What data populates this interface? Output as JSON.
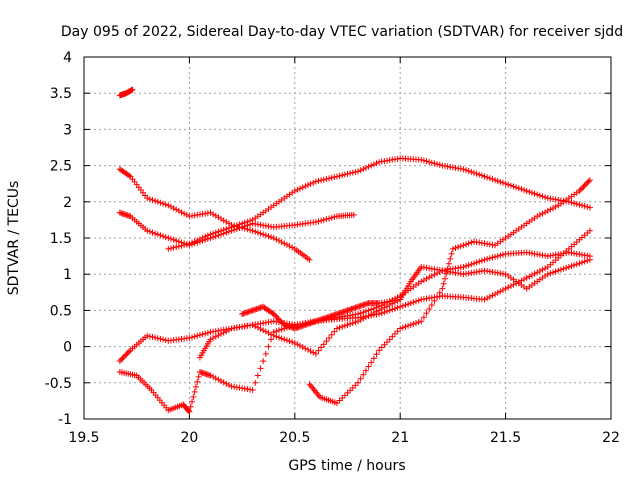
{
  "chart_data": {
    "type": "scatter",
    "title": "Day 095 of 2022, Sidereal Day-to-day VTEC variation (SDTVAR) for receiver sjdd",
    "xlabel": "GPS time / hours",
    "ylabel": "SDTVAR / TECUs",
    "xlim": [
      19.5,
      22
    ],
    "ylim": [
      -1,
      4
    ],
    "xticks": [
      19.5,
      20,
      20.5,
      21,
      21.5,
      22
    ],
    "xtick_labels": [
      "19.5",
      "20",
      "20.5",
      "21",
      "21.5",
      "22"
    ],
    "yticks": [
      -1,
      -0.5,
      0,
      0.5,
      1,
      1.5,
      2,
      2.5,
      3,
      3.5,
      4
    ],
    "ytick_labels": [
      "-1",
      "-0.5",
      "0",
      "0.5",
      "1",
      "1.5",
      "2",
      "2.5",
      "3",
      "3.5",
      "4"
    ],
    "grid": true,
    "marker": "+",
    "color": "#ff0000",
    "series": [
      {
        "name": "s1",
        "x": [
          19.67,
          19.7,
          19.73
        ],
        "y": [
          3.47,
          3.5,
          3.55
        ]
      },
      {
        "name": "s2",
        "x": [
          19.67,
          19.72,
          19.8,
          19.9,
          20.0,
          20.1,
          20.2,
          20.3,
          20.4,
          20.5,
          20.57
        ],
        "y": [
          2.45,
          2.35,
          2.05,
          1.95,
          1.8,
          1.85,
          1.68,
          1.6,
          1.5,
          1.35,
          1.2
        ]
      },
      {
        "name": "s3",
        "x": [
          19.67,
          19.72,
          19.8,
          19.9,
          20.0,
          20.1,
          20.2,
          20.3,
          20.4,
          20.5,
          20.6,
          20.7,
          20.78
        ],
        "y": [
          1.85,
          1.8,
          1.6,
          1.5,
          1.4,
          1.5,
          1.6,
          1.7,
          1.65,
          1.68,
          1.72,
          1.8,
          1.82
        ]
      },
      {
        "name": "s4",
        "x": [
          19.9,
          20.0,
          20.1,
          20.2,
          20.3,
          20.4,
          20.5,
          20.6,
          20.7,
          20.8,
          20.9,
          21.0,
          21.1,
          21.2,
          21.3,
          21.4,
          21.5,
          21.6,
          21.7,
          21.8,
          21.9
        ],
        "y": [
          1.35,
          1.42,
          1.55,
          1.65,
          1.75,
          1.95,
          2.15,
          2.28,
          2.35,
          2.42,
          2.55,
          2.6,
          2.58,
          2.5,
          2.45,
          2.35,
          2.25,
          2.15,
          2.05,
          2.0,
          1.92
        ]
      },
      {
        "name": "s5",
        "x": [
          19.67,
          19.72,
          19.8,
          19.9,
          20.0,
          20.1,
          20.2,
          20.3,
          20.4,
          20.5,
          20.6,
          20.7,
          20.8,
          20.9,
          21.0,
          21.1,
          21.2,
          21.3,
          21.4,
          21.5,
          21.6,
          21.7,
          21.8,
          21.9
        ],
        "y": [
          -0.2,
          -0.05,
          0.15,
          0.08,
          0.12,
          0.2,
          0.25,
          0.3,
          0.35,
          0.3,
          0.35,
          0.38,
          0.4,
          0.45,
          0.55,
          0.65,
          0.7,
          0.68,
          0.65,
          0.8,
          0.95,
          1.1,
          1.35,
          1.6
        ]
      },
      {
        "name": "s6",
        "x": [
          19.67,
          19.75,
          19.82,
          19.9,
          19.97,
          20.0,
          20.05,
          20.1,
          20.2,
          20.3,
          20.4,
          20.5,
          20.6,
          20.7,
          20.8,
          20.9,
          21.0,
          21.1,
          21.2,
          21.3,
          21.4,
          21.5,
          21.6,
          21.7,
          21.8,
          21.9
        ],
        "y": [
          -0.35,
          -0.4,
          -0.6,
          -0.88,
          -0.8,
          -0.9,
          -0.35,
          -0.4,
          -0.55,
          -0.6,
          0.2,
          0.3,
          0.35,
          0.4,
          0.45,
          0.55,
          0.7,
          0.9,
          1.05,
          1.1,
          1.2,
          1.28,
          1.3,
          1.25,
          1.3,
          1.25
        ]
      },
      {
        "name": "s7",
        "x": [
          20.05,
          20.1,
          20.2,
          20.3,
          20.4,
          20.5,
          20.6,
          20.7,
          20.8,
          20.9,
          21.0,
          21.05,
          21.1,
          21.2,
          21.3,
          21.4,
          21.5,
          21.6,
          21.7,
          21.8,
          21.9
        ],
        "y": [
          -0.15,
          0.1,
          0.25,
          0.3,
          0.15,
          0.05,
          -0.1,
          0.25,
          0.35,
          0.5,
          0.65,
          0.9,
          1.1,
          1.05,
          1.0,
          1.05,
          1.0,
          0.8,
          1.0,
          1.1,
          1.2
        ]
      },
      {
        "name": "s8",
        "x": [
          20.57,
          20.62,
          20.7,
          20.8,
          20.9,
          21.0,
          21.1,
          21.2,
          21.25,
          21.35,
          21.45,
          21.55,
          21.65,
          21.75,
          21.85,
          21.9
        ],
        "y": [
          -0.52,
          -0.7,
          -0.78,
          -0.5,
          -0.05,
          0.25,
          0.35,
          0.8,
          1.35,
          1.45,
          1.4,
          1.6,
          1.8,
          1.95,
          2.15,
          2.3
        ]
      },
      {
        "name": "s9",
        "x": [
          20.25,
          20.3,
          20.35,
          20.4,
          20.45,
          20.5,
          20.55,
          20.6,
          20.65,
          20.7,
          20.75,
          20.8,
          20.85,
          20.9,
          21.0
        ],
        "y": [
          0.45,
          0.5,
          0.55,
          0.45,
          0.3,
          0.25,
          0.3,
          0.35,
          0.4,
          0.45,
          0.5,
          0.55,
          0.6,
          0.6,
          0.65
        ]
      }
    ]
  }
}
